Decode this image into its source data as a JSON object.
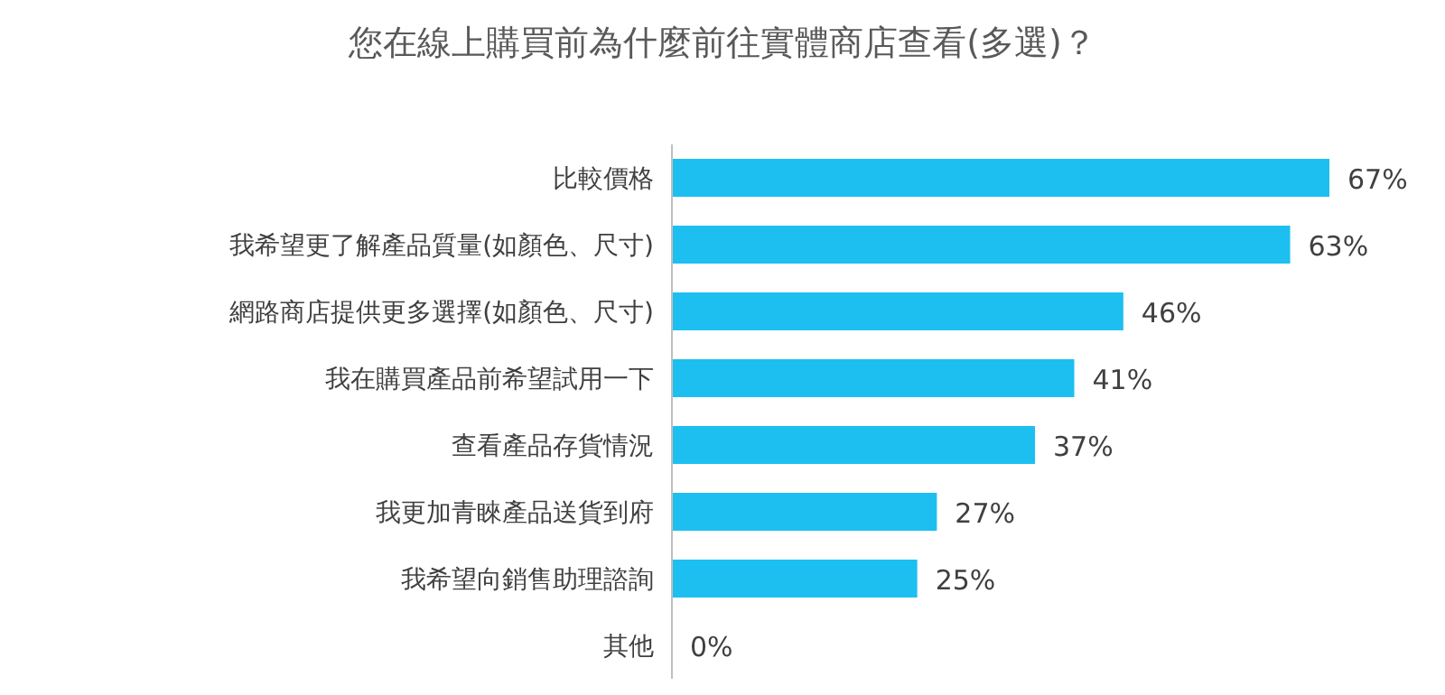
{
  "chart_data": {
    "type": "bar",
    "orientation": "horizontal",
    "title": "您在線上購買前為什麼前往實體商店查看(多選)？",
    "categories": [
      "比較價格",
      "我希望更了解產品質量(如顏色、尺寸)",
      "網路商店提供更多選擇(如顏色、尺寸)",
      "我在購買產品前希望試用一下",
      "查看產品存貨情況",
      "我更加青睞產品送貨到府",
      "我希望向銷售助理諮詢",
      "其他"
    ],
    "values": [
      67,
      63,
      46,
      41,
      37,
      27,
      25,
      0
    ],
    "value_labels": [
      "67%",
      "63%",
      "46%",
      "41%",
      "37%",
      "27%",
      "25%",
      "0%"
    ],
    "color": "#1cbff0"
  }
}
